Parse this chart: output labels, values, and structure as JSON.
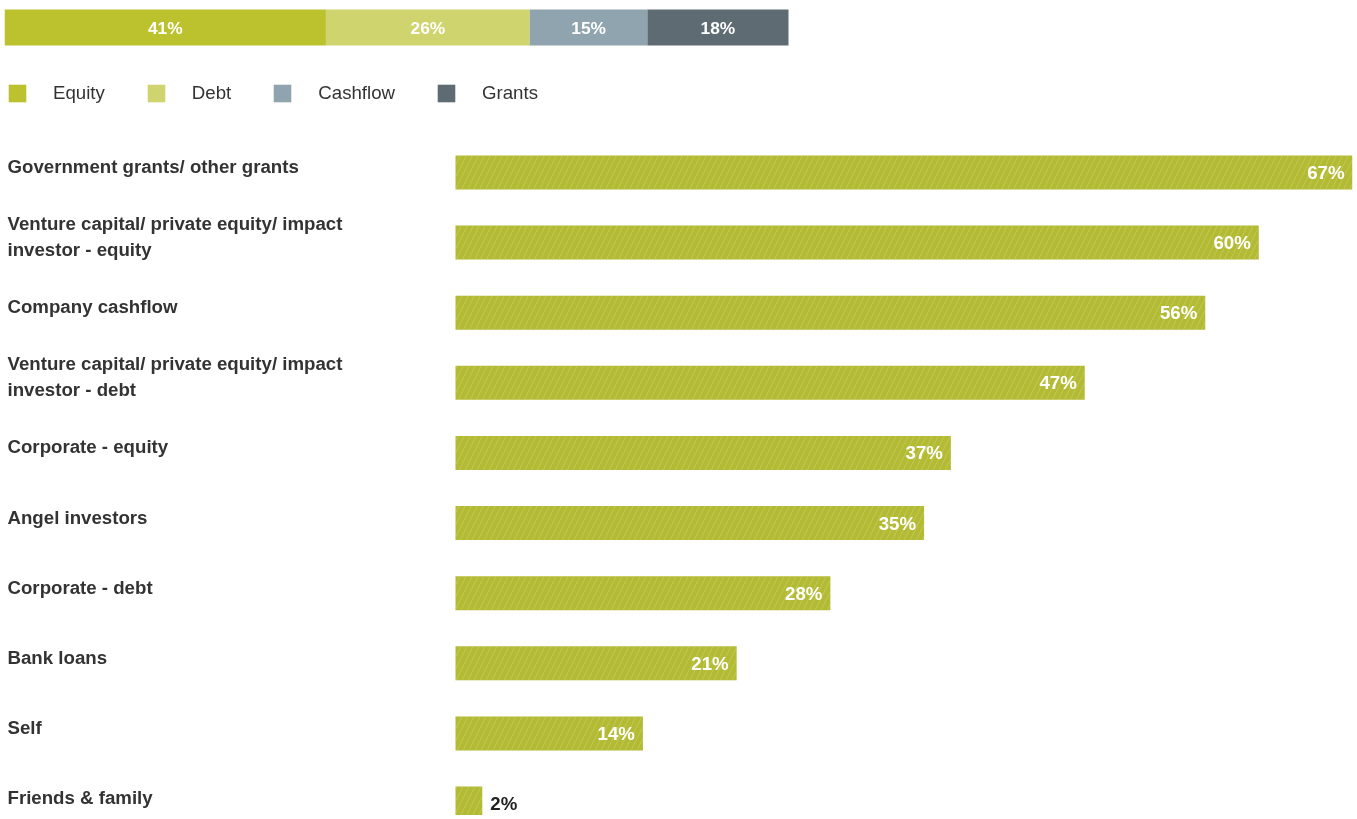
{
  "chart_data": [
    {
      "type": "bar",
      "orientation": "horizontal",
      "stacked": true,
      "categories": [
        null
      ],
      "legend": "bottom",
      "series": [
        {
          "name": "Equity",
          "color": "#bcc22e",
          "values": [
            41
          ],
          "value_labels": [
            "41%"
          ]
        },
        {
          "name": "Debt",
          "color": "#cfd46e",
          "values": [
            26
          ],
          "value_labels": [
            "26%"
          ]
        },
        {
          "name": "Cashflow",
          "color": "#8fa4ae",
          "values": [
            15
          ],
          "value_labels": [
            "15%"
          ]
        },
        {
          "name": "Grants",
          "color": "#5f6b73",
          "values": [
            18
          ],
          "value_labels": [
            "18%"
          ]
        }
      ]
    },
    {
      "type": "bar",
      "orientation": "horizontal",
      "categories": [
        "Government grants/ other grants",
        "Venture capital/ private equity/ impact investor - equity",
        "Company cashflow",
        "Venture capital/ private equity/ impact investor - debt",
        "Corporate - equity",
        "Angel investors",
        "Corporate - debt",
        "Bank loans",
        "Self",
        "Friends & family"
      ],
      "values": [
        67,
        60,
        56,
        47,
        37,
        35,
        28,
        21,
        14,
        2
      ],
      "value_labels": [
        "67%",
        "60%",
        "56%",
        "47%",
        "37%",
        "35%",
        "28%",
        "21%",
        "14%",
        "2%"
      ],
      "color": "#b3bb34"
    }
  ]
}
